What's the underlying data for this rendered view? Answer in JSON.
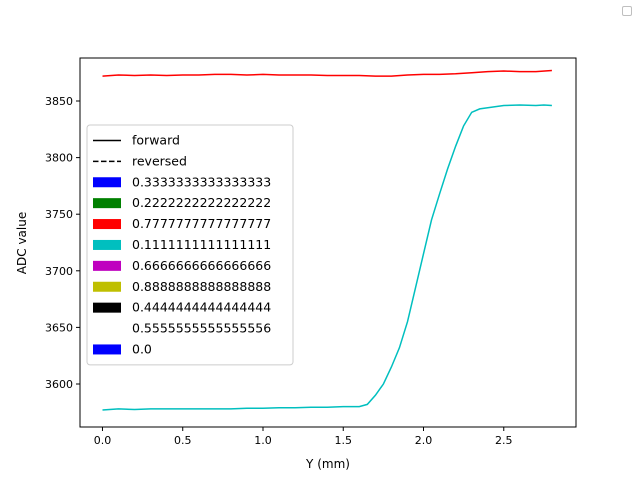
{
  "chart_data": {
    "type": "line",
    "xlabel": "Y (mm)",
    "ylabel": "ADC value",
    "xlim": [
      -0.14,
      2.95
    ],
    "ylim": [
      3562,
      3888
    ],
    "xticks": [
      0.0,
      0.5,
      1.0,
      1.5,
      2.0,
      2.5
    ],
    "xtick_labels": [
      "0.0",
      "0.5",
      "1.0",
      "1.5",
      "2.0",
      "2.5"
    ],
    "yticks": [
      3600,
      3650,
      3700,
      3750,
      3800,
      3850
    ],
    "ytick_labels": [
      "3600",
      "3650",
      "3700",
      "3750",
      "3800",
      "3850"
    ],
    "grid": false,
    "legend_position": "center-left",
    "legend": [
      {
        "label": "forward",
        "marker": "solid-line",
        "color": "#000000"
      },
      {
        "label": "reversed",
        "marker": "dashed-line",
        "color": "#000000"
      },
      {
        "label": "0.3333333333333333",
        "marker": "patch",
        "color": "#0000ff"
      },
      {
        "label": "0.2222222222222222",
        "marker": "patch",
        "color": "#008000"
      },
      {
        "label": "0.7777777777777777",
        "marker": "patch",
        "color": "#ff0000"
      },
      {
        "label": "0.1111111111111111",
        "marker": "patch",
        "color": "#00bfbf"
      },
      {
        "label": "0.6666666666666666",
        "marker": "patch",
        "color": "#bf00bf"
      },
      {
        "label": "0.8888888888888888",
        "marker": "patch",
        "color": "#bfbf00"
      },
      {
        "label": "0.4444444444444444",
        "marker": "patch",
        "color": "#000000"
      },
      {
        "label": "0.5555555555555556",
        "marker": "patch",
        "color": "#ffffff"
      },
      {
        "label": "0.0",
        "marker": "patch",
        "color": "#0000ff"
      }
    ],
    "series": [
      {
        "color": "#ff0000",
        "x": [
          0.0,
          0.1,
          0.2,
          0.3,
          0.4,
          0.5,
          0.6,
          0.7,
          0.8,
          0.9,
          1.0,
          1.1,
          1.2,
          1.3,
          1.4,
          1.5,
          1.6,
          1.7,
          1.8,
          1.9,
          2.0,
          2.1,
          2.2,
          2.3,
          2.4,
          2.5,
          2.6,
          2.7,
          2.8
        ],
        "y": [
          3872,
          3873,
          3872.5,
          3873,
          3872.5,
          3873,
          3873,
          3873.5,
          3873.5,
          3873,
          3873.5,
          3873,
          3873,
          3873,
          3872.5,
          3872.5,
          3872.5,
          3872,
          3872,
          3873,
          3873.5,
          3873.5,
          3874,
          3875,
          3876,
          3876.5,
          3876,
          3876,
          3877
        ]
      },
      {
        "color": "#00bfbf",
        "x": [
          0.0,
          0.1,
          0.2,
          0.3,
          0.4,
          0.5,
          0.6,
          0.7,
          0.8,
          0.9,
          1.0,
          1.1,
          1.2,
          1.3,
          1.4,
          1.5,
          1.6,
          1.65,
          1.7,
          1.75,
          1.8,
          1.85,
          1.9,
          1.95,
          2.0,
          2.05,
          2.1,
          2.15,
          2.2,
          2.25,
          2.3,
          2.35,
          2.4,
          2.5,
          2.6,
          2.7,
          2.75,
          2.8
        ],
        "y": [
          3577,
          3578,
          3577.5,
          3578,
          3578,
          3578,
          3578,
          3578,
          3578,
          3578.5,
          3578.5,
          3579,
          3579,
          3579.5,
          3579.5,
          3580,
          3580,
          3582,
          3590,
          3600,
          3615,
          3632,
          3655,
          3685,
          3715,
          3745,
          3768,
          3790,
          3810,
          3828,
          3840,
          3843,
          3844,
          3846,
          3846.5,
          3846,
          3846.5,
          3846
        ]
      }
    ]
  }
}
